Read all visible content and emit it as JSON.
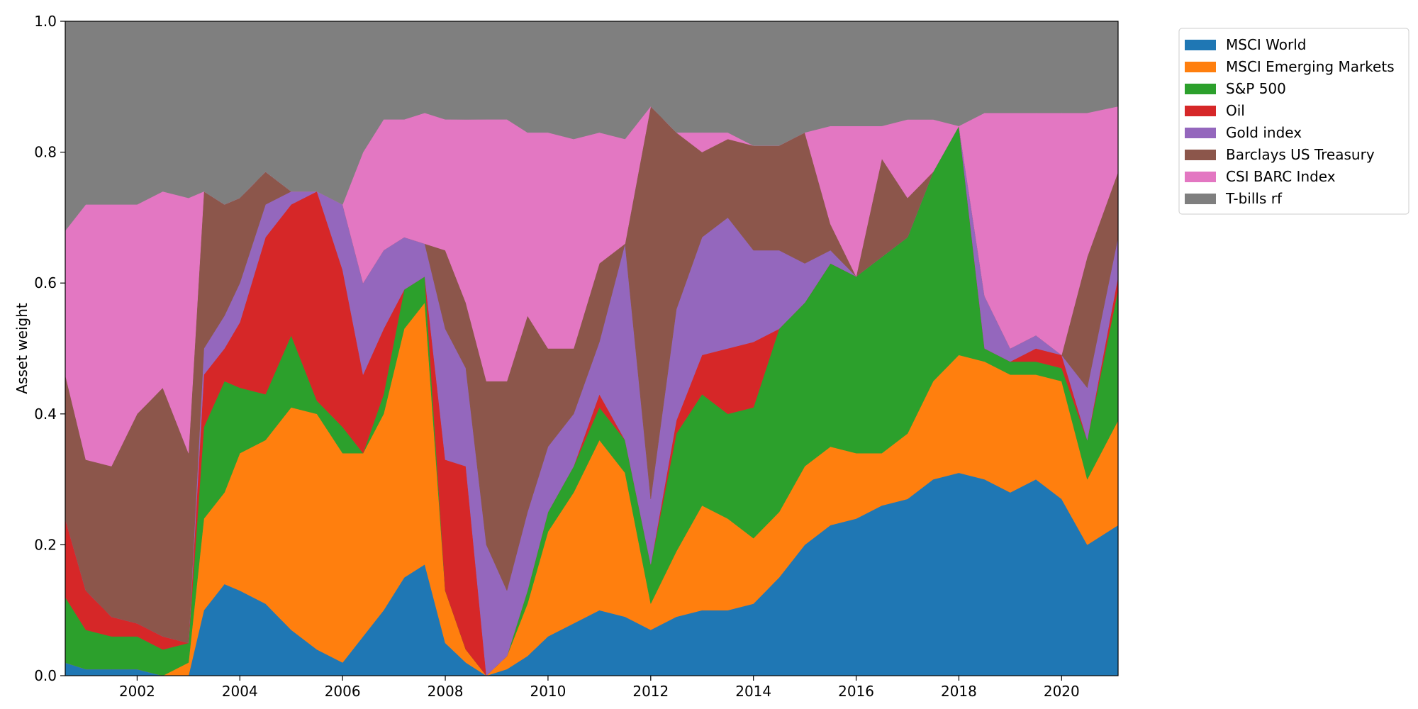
{
  "chart_data": {
    "type": "area",
    "stacked": true,
    "title": "",
    "xlabel": "",
    "ylabel": "Asset weight",
    "xlim": [
      2000.6,
      2021.1
    ],
    "ylim": [
      0,
      1.0
    ],
    "x_ticks": [
      2002,
      2004,
      2006,
      2008,
      2010,
      2012,
      2014,
      2016,
      2018,
      2020
    ],
    "y_ticks": [
      0.0,
      0.2,
      0.4,
      0.6,
      0.8,
      1.0
    ],
    "legend_position": "outside-right-top",
    "grid": false,
    "x": [
      2000.6,
      2001.0,
      2001.5,
      2002.0,
      2002.5,
      2003.0,
      2003.3,
      2003.7,
      2004.0,
      2004.5,
      2005.0,
      2005.5,
      2006.0,
      2006.4,
      2006.8,
      2007.2,
      2007.6,
      2008.0,
      2008.4,
      2008.8,
      2009.2,
      2009.6,
      2010.0,
      2010.5,
      2011.0,
      2011.5,
      2012.0,
      2012.5,
      2013.0,
      2013.5,
      2014.0,
      2014.5,
      2015.0,
      2015.5,
      2016.0,
      2016.5,
      2017.0,
      2017.5,
      2018.0,
      2018.5,
      2019.0,
      2019.5,
      2020.0,
      2020.5,
      2021.1
    ],
    "series": [
      {
        "name": "MSCI World",
        "color": "#1f77b4",
        "values": [
          0.02,
          0.01,
          0.01,
          0.01,
          0.0,
          0.0,
          0.1,
          0.14,
          0.13,
          0.11,
          0.07,
          0.04,
          0.02,
          0.06,
          0.1,
          0.15,
          0.17,
          0.05,
          0.02,
          0.0,
          0.01,
          0.03,
          0.06,
          0.08,
          0.1,
          0.09,
          0.07,
          0.09,
          0.1,
          0.1,
          0.11,
          0.15,
          0.2,
          0.23,
          0.24,
          0.26,
          0.27,
          0.3,
          0.31,
          0.3,
          0.28,
          0.3,
          0.27,
          0.2,
          0.23
        ]
      },
      {
        "name": "MSCI Emerging Markets",
        "color": "#ff7f0e",
        "values": [
          0.0,
          0.0,
          0.0,
          0.0,
          0.0,
          0.02,
          0.14,
          0.14,
          0.21,
          0.25,
          0.34,
          0.36,
          0.32,
          0.28,
          0.3,
          0.38,
          0.4,
          0.08,
          0.02,
          0.0,
          0.02,
          0.08,
          0.16,
          0.2,
          0.26,
          0.22,
          0.04,
          0.1,
          0.16,
          0.14,
          0.1,
          0.1,
          0.12,
          0.12,
          0.1,
          0.08,
          0.1,
          0.15,
          0.18,
          0.18,
          0.18,
          0.16,
          0.18,
          0.1,
          0.16
        ]
      },
      {
        "name": "S&P 500",
        "color": "#2ca02c",
        "values": [
          0.1,
          0.06,
          0.05,
          0.05,
          0.04,
          0.03,
          0.14,
          0.17,
          0.1,
          0.07,
          0.11,
          0.02,
          0.04,
          0.0,
          0.03,
          0.06,
          0.04,
          0.0,
          0.0,
          0.0,
          0.0,
          0.02,
          0.03,
          0.04,
          0.05,
          0.05,
          0.06,
          0.18,
          0.17,
          0.16,
          0.2,
          0.28,
          0.25,
          0.28,
          0.27,
          0.3,
          0.3,
          0.32,
          0.35,
          0.02,
          0.02,
          0.02,
          0.02,
          0.06,
          0.2
        ]
      },
      {
        "name": "Oil",
        "color": "#d62728",
        "values": [
          0.12,
          0.06,
          0.03,
          0.02,
          0.02,
          0.0,
          0.08,
          0.05,
          0.1,
          0.24,
          0.2,
          0.32,
          0.24,
          0.12,
          0.1,
          0.0,
          0.0,
          0.2,
          0.28,
          0.0,
          0.0,
          0.0,
          0.0,
          0.0,
          0.02,
          0.0,
          0.0,
          0.02,
          0.06,
          0.1,
          0.1,
          0.0,
          0.0,
          0.0,
          0.0,
          0.0,
          0.0,
          0.0,
          0.0,
          0.0,
          0.0,
          0.02,
          0.02,
          0.0,
          0.02
        ]
      },
      {
        "name": "Gold index",
        "color": "#9467bd",
        "values": [
          0.0,
          0.0,
          0.0,
          0.0,
          0.0,
          0.0,
          0.04,
          0.05,
          0.06,
          0.05,
          0.02,
          0.0,
          0.1,
          0.14,
          0.12,
          0.08,
          0.05,
          0.2,
          0.15,
          0.2,
          0.1,
          0.12,
          0.1,
          0.08,
          0.08,
          0.3,
          0.1,
          0.17,
          0.18,
          0.2,
          0.14,
          0.12,
          0.06,
          0.02,
          0.0,
          0.0,
          0.0,
          0.0,
          0.0,
          0.08,
          0.02,
          0.02,
          0.0,
          0.08,
          0.06
        ]
      },
      {
        "name": "Barclays US Treasury",
        "color": "#8c564b",
        "values": [
          0.22,
          0.2,
          0.23,
          0.32,
          0.38,
          0.29,
          0.24,
          0.17,
          0.13,
          0.05,
          0.0,
          0.0,
          0.0,
          0.0,
          0.0,
          0.0,
          0.0,
          0.12,
          0.1,
          0.25,
          0.32,
          0.3,
          0.15,
          0.1,
          0.12,
          0.0,
          0.6,
          0.27,
          0.13,
          0.12,
          0.16,
          0.16,
          0.2,
          0.04,
          0.0,
          0.15,
          0.06,
          0.0,
          0.0,
          0.0,
          0.0,
          0.0,
          0.0,
          0.2,
          0.1
        ]
      },
      {
        "name": "CSI BARC Index",
        "color": "#e377c2",
        "values": [
          0.22,
          0.39,
          0.4,
          0.32,
          0.3,
          0.39,
          0.0,
          0.0,
          0.0,
          0.0,
          0.0,
          0.0,
          0.0,
          0.2,
          0.2,
          0.18,
          0.2,
          0.2,
          0.28,
          0.4,
          0.4,
          0.28,
          0.33,
          0.32,
          0.2,
          0.16,
          0.0,
          0.0,
          0.03,
          0.01,
          0.0,
          0.0,
          0.0,
          0.15,
          0.23,
          0.05,
          0.12,
          0.08,
          0.0,
          0.28,
          0.36,
          0.34,
          0.37,
          0.22,
          0.1
        ]
      },
      {
        "name": "T-bills rf",
        "color": "#7f7f7f",
        "values": [
          0.32,
          0.28,
          0.28,
          0.28,
          0.26,
          0.27,
          0.26,
          0.28,
          0.27,
          0.23,
          0.26,
          0.26,
          0.28,
          0.2,
          0.15,
          0.15,
          0.14,
          0.15,
          0.15,
          0.15,
          0.15,
          0.17,
          0.17,
          0.18,
          0.17,
          0.18,
          0.13,
          0.17,
          0.17,
          0.17,
          0.19,
          0.19,
          0.17,
          0.16,
          0.16,
          0.16,
          0.15,
          0.15,
          0.16,
          0.14,
          0.14,
          0.14,
          0.14,
          0.14,
          0.13
        ]
      }
    ]
  }
}
